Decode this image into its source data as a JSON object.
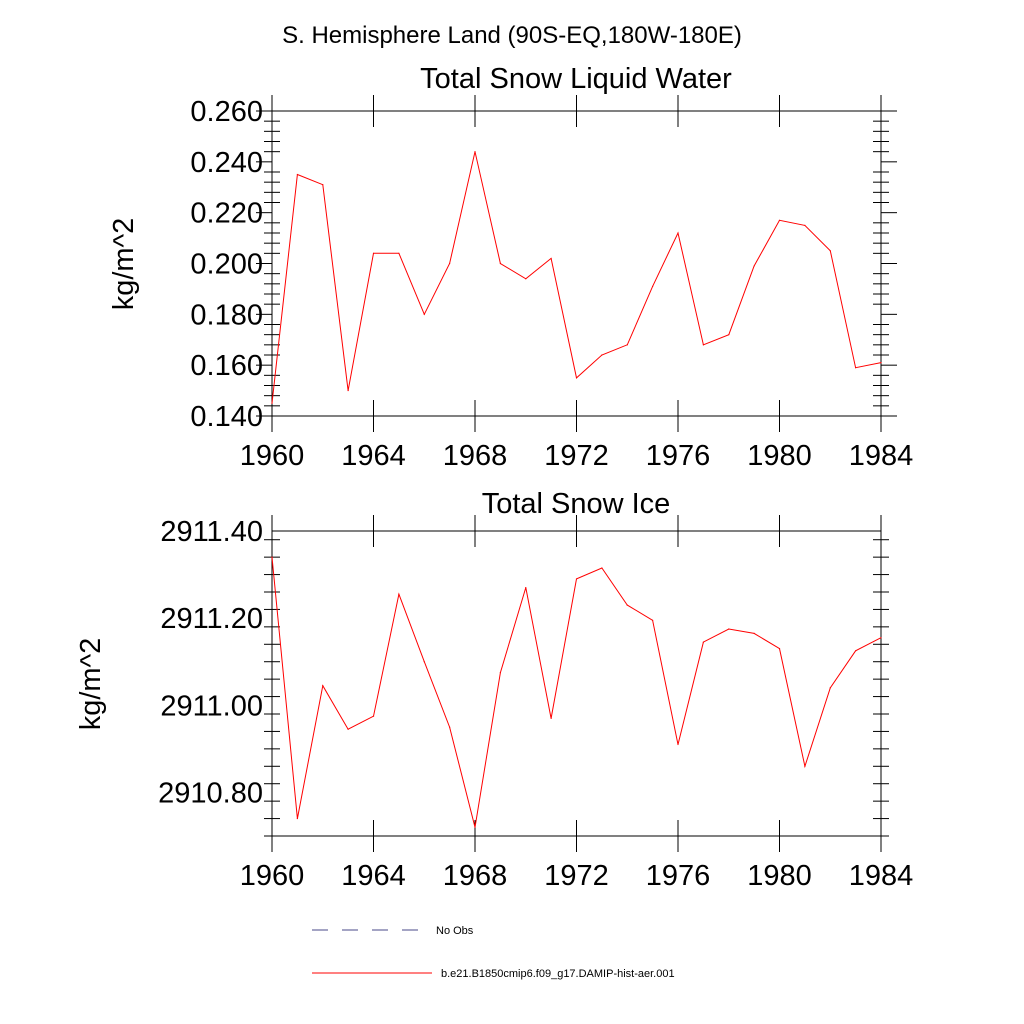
{
  "main_title": "S. Hemisphere Land (90S-EQ,180W-180E)",
  "colors": {
    "series": "#ff0000",
    "no_obs": "#4a4a8a",
    "axis": "#000000"
  },
  "legend": [
    {
      "label": "No Obs",
      "style": "dashed"
    },
    {
      "label": "b.e21.B1850cmip6.f09_g17.DAMIP-hist-aer.001",
      "style": "solid"
    }
  ],
  "chart_data": [
    {
      "type": "line",
      "title": "Total Snow Liquid Water",
      "xlabel": "",
      "ylabel": "kg/m^2",
      "xlim": [
        1960,
        1984
      ],
      "ylim": [
        0.14,
        0.26
      ],
      "x_ticks": [
        "1960",
        "1964",
        "1968",
        "1972",
        "1976",
        "1980",
        "1984"
      ],
      "y_ticks": [
        "0.140",
        "0.160",
        "0.180",
        "0.200",
        "0.220",
        "0.240",
        "0.260"
      ],
      "series": [
        {
          "name": "b.e21.B1850cmip6.f09_g17.DAMIP-hist-aer.001",
          "x": [
            1960,
            1961,
            1962,
            1963,
            1964,
            1965,
            1966,
            1967,
            1968,
            1969,
            1970,
            1971,
            1972,
            1973,
            1974,
            1975,
            1976,
            1977,
            1978,
            1979,
            1980,
            1981,
            1982,
            1983,
            1984
          ],
          "values": [
            0.145,
            0.235,
            0.231,
            0.15,
            0.204,
            0.204,
            0.18,
            0.2,
            0.244,
            0.2,
            0.194,
            0.202,
            0.155,
            0.164,
            0.168,
            0.191,
            0.212,
            0.168,
            0.172,
            0.199,
            0.217,
            0.215,
            0.205,
            0.159,
            0.161
          ]
        }
      ]
    },
    {
      "type": "line",
      "title": "Total Snow Ice",
      "xlabel": "",
      "ylabel": "kg/m^2",
      "xlim": [
        1960,
        1984
      ],
      "ylim": [
        2910.7,
        2911.4
      ],
      "x_ticks": [
        "1960",
        "1964",
        "1968",
        "1972",
        "1976",
        "1980",
        "1984"
      ],
      "y_ticks": [
        "2910.80",
        "2911.00",
        "2911.20",
        "2911.40"
      ],
      "series": [
        {
          "name": "b.e21.B1850cmip6.f09_g17.DAMIP-hist-aer.001",
          "x": [
            1960,
            1961,
            1962,
            1963,
            1964,
            1965,
            1966,
            1967,
            1968,
            1969,
            1970,
            1971,
            1972,
            1973,
            1974,
            1975,
            1976,
            1977,
            1978,
            1979,
            1980,
            1981,
            1982,
            1983,
            1984
          ],
          "values": [
            2911.34,
            2910.74,
            2911.045,
            2910.945,
            2910.975,
            2911.255,
            2911.1,
            2910.95,
            2910.72,
            2911.075,
            2911.27,
            2910.97,
            2911.29,
            2911.315,
            2911.23,
            2911.195,
            2910.91,
            2911.145,
            2911.175,
            2911.165,
            2911.13,
            2910.86,
            2911.04,
            2911.125,
            2911.155
          ]
        }
      ]
    }
  ]
}
